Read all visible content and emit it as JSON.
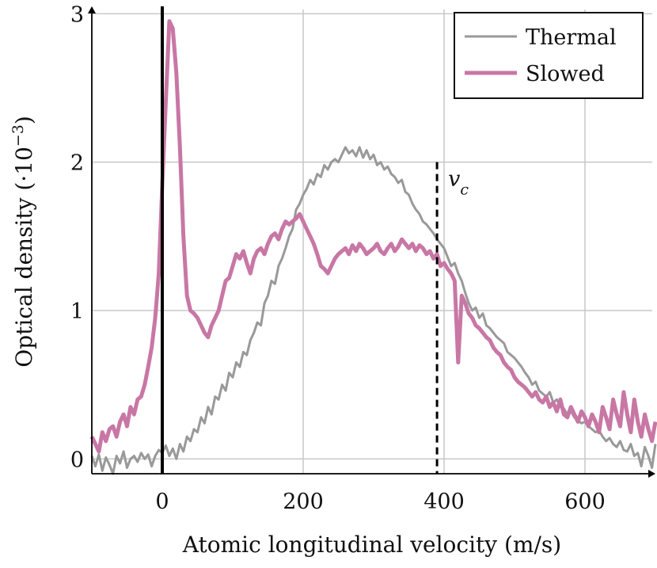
{
  "chart_data": {
    "type": "line",
    "xlabel": "Atomic longitudinal velocity (m/s)",
    "ylabel": "Optical density (·10",
    "ylabel_exp": "−3",
    "ylabel_close": ")",
    "xlim": [
      -100,
      700
    ],
    "ylim": [
      -0.1,
      3.05
    ],
    "xticks": [
      0,
      200,
      400,
      600
    ],
    "yticks": [
      0,
      1,
      2,
      3
    ],
    "grid": true,
    "legend_position": "top-right",
    "vlines": [
      {
        "x": 0,
        "style": "solid"
      },
      {
        "x": 390,
        "ymax": 2.0,
        "style": "dashed",
        "label": "v",
        "label_sub": "c"
      }
    ],
    "series": [
      {
        "name": "Thermal",
        "color": "#999999",
        "x": [
          -100,
          -95,
          -90,
          -85,
          -80,
          -75,
          -70,
          -65,
          -60,
          -55,
          -50,
          -45,
          -40,
          -35,
          -30,
          -25,
          -20,
          -15,
          -10,
          -5,
          0,
          5,
          10,
          15,
          20,
          25,
          30,
          35,
          40,
          45,
          50,
          55,
          60,
          65,
          70,
          75,
          80,
          85,
          90,
          95,
          100,
          105,
          110,
          115,
          120,
          125,
          130,
          135,
          140,
          145,
          150,
          155,
          160,
          165,
          170,
          175,
          180,
          185,
          190,
          195,
          200,
          205,
          210,
          215,
          220,
          225,
          230,
          235,
          240,
          245,
          250,
          255,
          260,
          265,
          270,
          275,
          280,
          285,
          290,
          295,
          300,
          305,
          310,
          315,
          320,
          325,
          330,
          335,
          340,
          345,
          350,
          355,
          360,
          365,
          370,
          375,
          380,
          385,
          390,
          395,
          400,
          405,
          410,
          415,
          420,
          425,
          430,
          435,
          440,
          445,
          450,
          455,
          460,
          465,
          470,
          475,
          480,
          485,
          490,
          495,
          500,
          505,
          510,
          515,
          520,
          525,
          530,
          535,
          540,
          545,
          550,
          555,
          560,
          565,
          570,
          575,
          580,
          585,
          590,
          595,
          600,
          605,
          610,
          615,
          620,
          625,
          630,
          635,
          640,
          645,
          650,
          655,
          660,
          665,
          670,
          675,
          680,
          685,
          690,
          695,
          700
        ],
        "y": [
          0.02,
          -0.05,
          0.03,
          -0.08,
          0.01,
          -0.04,
          -0.1,
          0.02,
          -0.03,
          0.05,
          -0.06,
          0.0,
          0.02,
          -0.02,
          0.04,
          0.0,
          0.03,
          -0.05,
          0.02,
          0.06,
          0.04,
          0.09,
          0.02,
          0.07,
          0.0,
          0.1,
          0.05,
          0.15,
          0.12,
          0.2,
          0.18,
          0.28,
          0.24,
          0.35,
          0.3,
          0.42,
          0.4,
          0.5,
          0.46,
          0.58,
          0.55,
          0.65,
          0.62,
          0.72,
          0.7,
          0.8,
          0.85,
          0.92,
          0.9,
          1.05,
          1.1,
          1.2,
          1.18,
          1.3,
          1.35,
          1.42,
          1.5,
          1.55,
          1.68,
          1.72,
          1.78,
          1.82,
          1.88,
          1.85,
          1.92,
          1.9,
          1.98,
          1.95,
          2.0,
          2.02,
          2.0,
          2.05,
          2.1,
          2.06,
          2.08,
          2.04,
          2.1,
          2.03,
          2.08,
          2.02,
          2.05,
          1.98,
          2.0,
          1.95,
          1.97,
          1.92,
          1.9,
          1.86,
          1.88,
          1.8,
          1.78,
          1.72,
          1.68,
          1.65,
          1.6,
          1.58,
          1.55,
          1.52,
          1.48,
          1.45,
          1.42,
          1.36,
          1.3,
          1.32,
          1.25,
          1.2,
          1.12,
          1.05,
          1.0,
          1.02,
          0.95,
          0.98,
          0.9,
          0.88,
          0.85,
          0.82,
          0.8,
          0.78,
          0.72,
          0.7,
          0.68,
          0.65,
          0.62,
          0.58,
          0.55,
          0.5,
          0.52,
          0.46,
          0.44,
          0.42,
          0.45,
          0.38,
          0.4,
          0.35,
          0.34,
          0.3,
          0.32,
          0.28,
          0.26,
          0.24,
          0.25,
          0.22,
          0.2,
          0.18,
          0.19,
          0.15,
          0.12,
          0.14,
          0.1,
          0.08,
          0.12,
          0.06,
          0.05,
          0.1,
          0.02,
          0.04,
          -0.05,
          0.08,
          0.02,
          -0.06,
          0.1
        ]
      },
      {
        "name": "Slowed",
        "color": "#c877a5",
        "x": [
          -100,
          -95,
          -90,
          -85,
          -80,
          -75,
          -70,
          -65,
          -60,
          -55,
          -50,
          -45,
          -40,
          -35,
          -30,
          -25,
          -20,
          -15,
          -10,
          -5,
          0,
          5,
          10,
          15,
          20,
          25,
          30,
          35,
          40,
          45,
          50,
          55,
          60,
          65,
          70,
          75,
          80,
          85,
          90,
          95,
          100,
          105,
          110,
          115,
          120,
          125,
          130,
          135,
          140,
          145,
          150,
          155,
          160,
          165,
          170,
          175,
          180,
          185,
          190,
          195,
          200,
          205,
          210,
          215,
          220,
          225,
          230,
          235,
          240,
          245,
          250,
          255,
          260,
          265,
          270,
          275,
          280,
          285,
          290,
          295,
          300,
          305,
          310,
          315,
          320,
          325,
          330,
          335,
          340,
          345,
          350,
          355,
          360,
          365,
          370,
          375,
          380,
          385,
          390,
          395,
          400,
          405,
          410,
          415,
          420,
          425,
          430,
          435,
          440,
          445,
          450,
          455,
          460,
          465,
          470,
          475,
          480,
          485,
          490,
          495,
          500,
          505,
          510,
          515,
          520,
          525,
          530,
          535,
          540,
          545,
          550,
          555,
          560,
          565,
          570,
          575,
          580,
          585,
          590,
          595,
          600,
          605,
          610,
          615,
          620,
          625,
          630,
          635,
          640,
          645,
          650,
          655,
          660,
          665,
          670,
          675,
          680,
          685,
          690,
          695,
          700
        ],
        "y": [
          0.15,
          0.1,
          0.05,
          0.18,
          0.12,
          0.2,
          0.22,
          0.15,
          0.25,
          0.3,
          0.22,
          0.35,
          0.3,
          0.4,
          0.42,
          0.5,
          0.62,
          0.75,
          0.95,
          1.25,
          1.85,
          2.4,
          2.95,
          2.9,
          2.6,
          2.1,
          1.5,
          1.1,
          1.0,
          0.98,
          0.95,
          0.9,
          0.85,
          0.82,
          0.9,
          0.95,
          1.0,
          1.1,
          1.2,
          1.22,
          1.3,
          1.38,
          1.35,
          1.4,
          1.32,
          1.25,
          1.35,
          1.4,
          1.42,
          1.38,
          1.45,
          1.5,
          1.52,
          1.48,
          1.55,
          1.6,
          1.58,
          1.6,
          1.62,
          1.65,
          1.6,
          1.55,
          1.5,
          1.45,
          1.38,
          1.3,
          1.28,
          1.25,
          1.3,
          1.35,
          1.38,
          1.4,
          1.42,
          1.38,
          1.44,
          1.4,
          1.45,
          1.42,
          1.38,
          1.4,
          1.42,
          1.45,
          1.4,
          1.38,
          1.42,
          1.45,
          1.4,
          1.43,
          1.48,
          1.45,
          1.42,
          1.45,
          1.4,
          1.44,
          1.42,
          1.38,
          1.4,
          1.35,
          1.38,
          1.3,
          1.32,
          1.28,
          1.25,
          1.2,
          0.65,
          1.1,
          1.05,
          0.98,
          0.95,
          0.9,
          0.88,
          0.85,
          0.82,
          0.8,
          0.75,
          0.72,
          0.7,
          0.65,
          0.62,
          0.6,
          0.55,
          0.52,
          0.5,
          0.48,
          0.45,
          0.42,
          0.45,
          0.4,
          0.38,
          0.42,
          0.35,
          0.38,
          0.32,
          0.4,
          0.3,
          0.28,
          0.35,
          0.3,
          0.25,
          0.32,
          0.28,
          0.22,
          0.3,
          0.25,
          0.18,
          0.35,
          0.28,
          0.2,
          0.4,
          0.3,
          0.22,
          0.45,
          0.3,
          0.18,
          0.4,
          0.25,
          0.15,
          0.3,
          0.2,
          0.12,
          0.25
        ]
      }
    ]
  }
}
